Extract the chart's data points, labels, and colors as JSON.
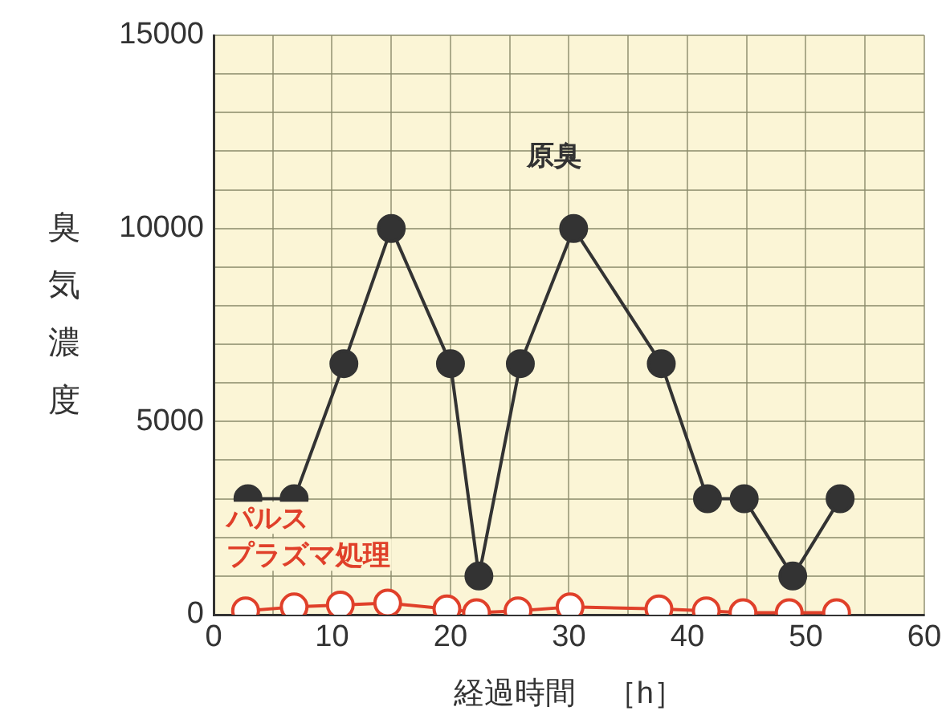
{
  "chart_data": {
    "type": "line",
    "xlabel": "経過時間　［h］",
    "ylabel": "臭気濃度",
    "xlim": [
      0,
      60
    ],
    "xticks": [
      0,
      {
        "value": 5,
        "label": null
      },
      10,
      {
        "value": 15,
        "label": null
      },
      20,
      {
        "value": 25,
        "label": null
      },
      30,
      {
        "value": 35,
        "label": null
      },
      40,
      {
        "value": 45,
        "label": null
      },
      50,
      {
        "value": 55,
        "label": null
      },
      60
    ],
    "ylim": [
      0,
      15000
    ],
    "yticks": [
      0,
      {
        "value": 1000,
        "label": null
      },
      {
        "value": 2000,
        "label": null
      },
      {
        "value": 3000,
        "label": null
      },
      {
        "value": 4000,
        "label": null
      },
      5000,
      {
        "value": 6000,
        "label": null
      },
      {
        "value": 7000,
        "label": null
      },
      {
        "value": 8000,
        "label": null
      },
      {
        "value": 9000,
        "label": null
      },
      10000,
      {
        "value": 11000,
        "label": null
      },
      {
        "value": 12000,
        "label": null
      },
      {
        "value": 13000,
        "label": null
      },
      {
        "value": 14000,
        "label": null
      },
      15000
    ],
    "grid": true,
    "marker": "circle",
    "line_style": "solid",
    "series": [
      {
        "name": "原臭",
        "color": "#333333",
        "x": [
          2.9,
          6.8,
          11.0,
          15.0,
          20.0,
          22.4,
          25.9,
          30.4,
          37.8,
          41.7,
          44.8,
          48.9,
          52.9
        ],
        "values": [
          3000,
          3000,
          6500,
          10000,
          6500,
          1000,
          6500,
          10000,
          6500,
          3000,
          3000,
          1000,
          3000
        ]
      },
      {
        "name": "パルスプラズマ処理",
        "color": "#e0402a",
        "x": [
          2.7,
          6.8,
          10.7,
          14.7,
          19.7,
          22.2,
          25.7,
          30.1,
          37.6,
          41.6,
          44.7,
          48.6,
          52.6
        ],
        "values": [
          100,
          200,
          250,
          300,
          150,
          50,
          100,
          200,
          150,
          100,
          50,
          50,
          50
        ]
      }
    ]
  }
}
